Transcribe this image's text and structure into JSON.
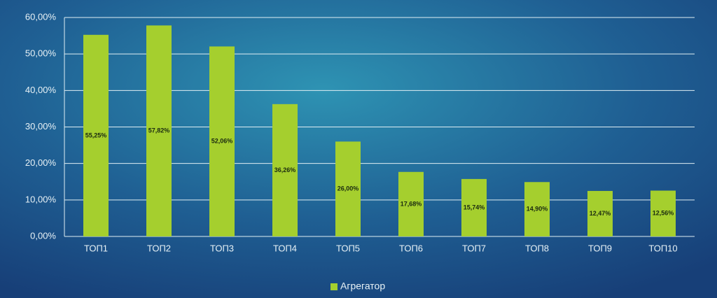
{
  "chart_data": {
    "type": "bar",
    "categories": [
      "ТОП1",
      "ТОП2",
      "ТОП3",
      "ТОП4",
      "ТОП5",
      "ТОП6",
      "ТОП7",
      "ТОП8",
      "ТОП9",
      "ТОП10"
    ],
    "series": [
      {
        "name": "Агрегатор",
        "color": "#a5cf2e",
        "values": [
          55.25,
          57.82,
          52.06,
          36.26,
          26.0,
          17.68,
          15.74,
          14.9,
          12.47,
          12.56
        ],
        "value_labels": [
          "55,25%",
          "57,82%",
          "52,06%",
          "36,26%",
          "26,00%",
          "17,68%",
          "15,74%",
          "14,90%",
          "12,47%",
          "12,56%"
        ]
      }
    ],
    "ylim": [
      0,
      60
    ],
    "yticks": [
      {
        "value": 0,
        "label": "0,00%"
      },
      {
        "value": 10,
        "label": "10,00%"
      },
      {
        "value": 20,
        "label": "20,00%"
      },
      {
        "value": 30,
        "label": "30,00%"
      },
      {
        "value": 40,
        "label": "40,00%"
      },
      {
        "value": 50,
        "label": "50,00%"
      },
      {
        "value": 60,
        "label": "60,00%"
      }
    ],
    "grid": true,
    "legend": "bottom"
  }
}
